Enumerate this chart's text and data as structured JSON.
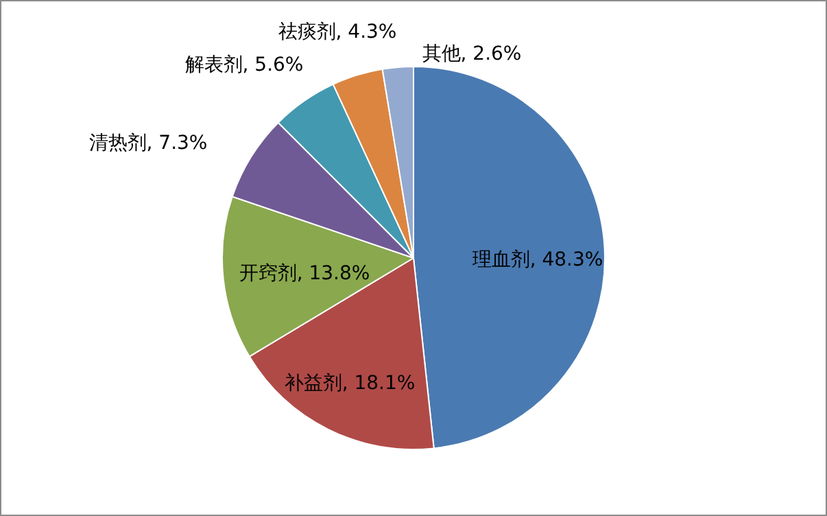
{
  "chart_data": {
    "type": "pie",
    "categories": [
      "理血剂",
      "补益剂",
      "开窍剂",
      "清热剂",
      "解表剂",
      "祛痰剂",
      "其他"
    ],
    "values": [
      48.3,
      18.1,
      13.8,
      7.3,
      5.6,
      4.3,
      2.6
    ],
    "value_labels": [
      "48.3%",
      "18.1%",
      "13.8%",
      "7.3%",
      "5.6%",
      "4.3%",
      "2.6%"
    ],
    "colors": [
      "#4a7ab2",
      "#b04a47",
      "#8aa84e",
      "#6f5a95",
      "#4299b0",
      "#dc8540",
      "#94a9d0"
    ],
    "legend": false
  }
}
